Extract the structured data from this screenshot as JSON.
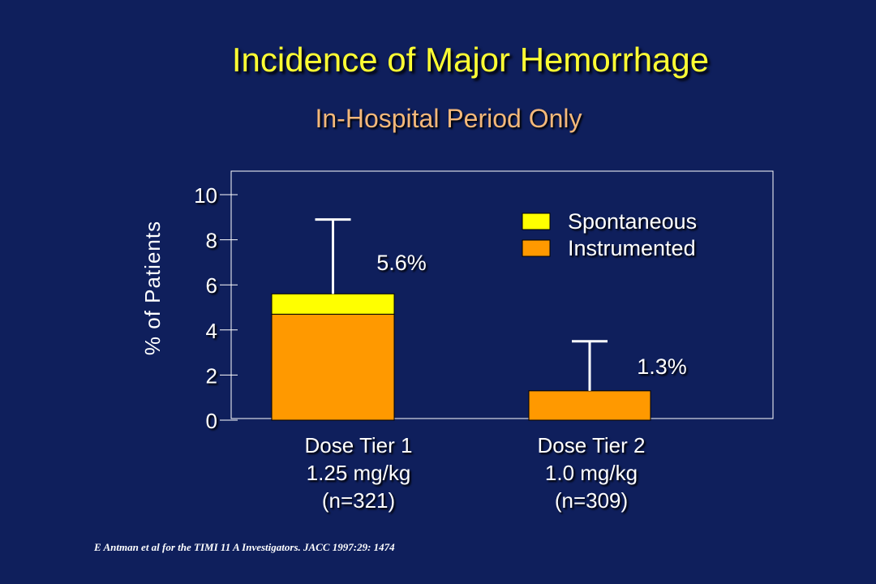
{
  "slide": {
    "title": "Incidence of Major Hemorrhage",
    "subtitle": "In-Hospital Period Only",
    "citation": "E Antman et al  for the TIMI 11 A Investigators. JACC 1997:29: 1474"
  },
  "chart_data": {
    "type": "bar",
    "stacked": true,
    "ylabel": "% of Patients",
    "ylim": [
      0,
      10
    ],
    "yticks": [
      0,
      2,
      4,
      6,
      8,
      10
    ],
    "categories": [
      [
        "Dose Tier 1",
        "1.25 mg/kg",
        "(n=321)"
      ],
      [
        "Dose Tier 2",
        "1.0 mg/kg",
        "(n=309)"
      ]
    ],
    "series": [
      {
        "name": "Instrumented",
        "color": "#ff9900",
        "values": [
          4.7,
          1.3
        ]
      },
      {
        "name": "Spontaneous",
        "color": "#ffff00",
        "values": [
          0.9,
          0.0
        ]
      }
    ],
    "legend_order": [
      "Spontaneous",
      "Instrumented"
    ],
    "totals": [
      "5.6%",
      "1.3%"
    ],
    "error_upper": [
      8.9,
      3.5
    ],
    "legend_position": "top-right"
  }
}
